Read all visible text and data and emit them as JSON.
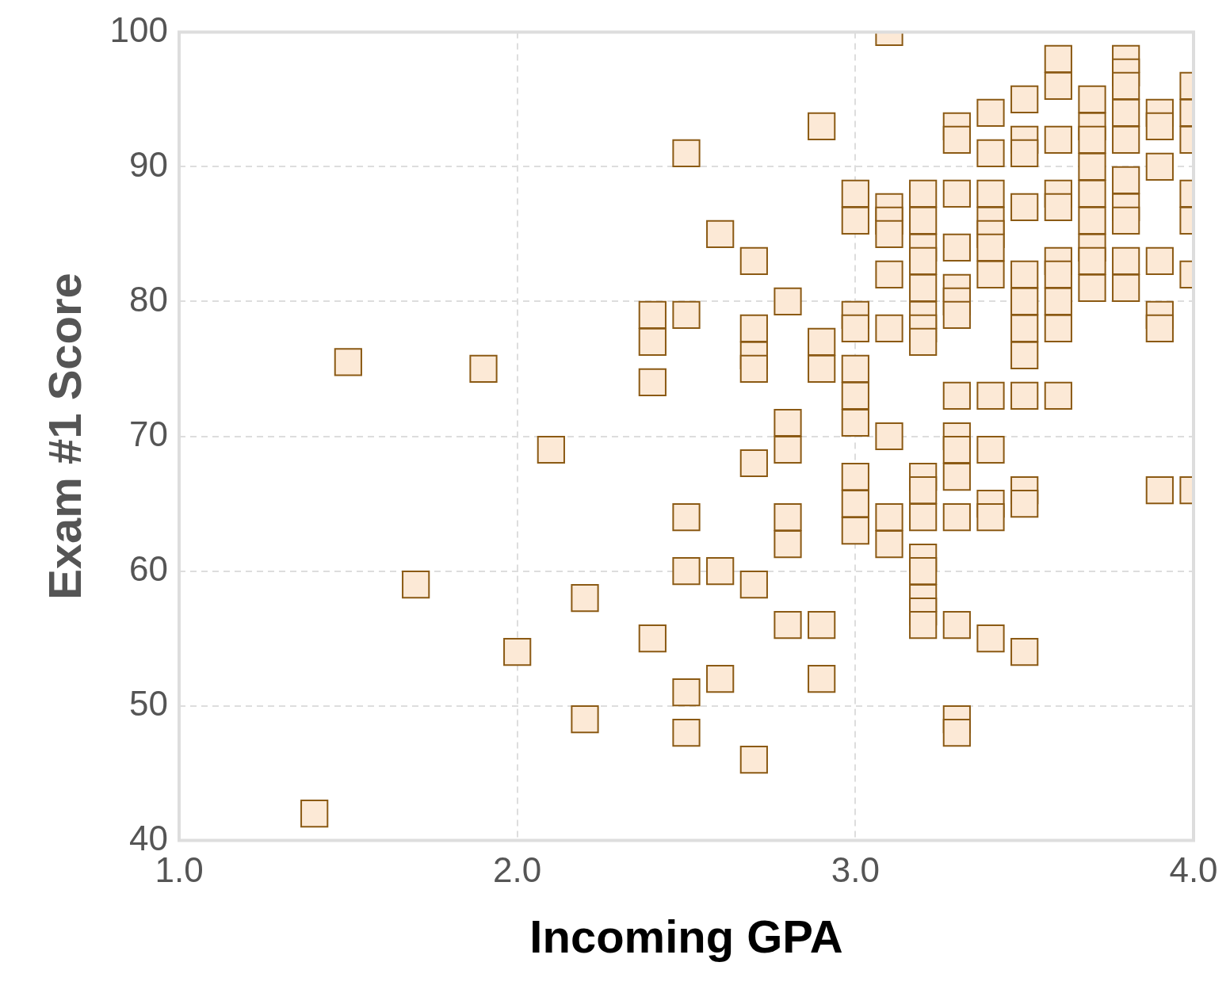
{
  "chart_data": {
    "type": "scatter",
    "xlabel": "Incoming GPA",
    "ylabel": "Exam #1 Score",
    "marker": "square",
    "grid": true,
    "xlim": [
      1.0,
      4.0
    ],
    "xticks": [
      {
        "value": 1.0,
        "label": "1.0"
      },
      {
        "value": 2.0,
        "label": "2.0"
      },
      {
        "value": 3.0,
        "label": "3.0"
      },
      {
        "value": 4.0,
        "label": "4.0"
      }
    ],
    "ylim": [
      40,
      100
    ],
    "yticks": [
      40,
      50,
      60,
      70,
      80,
      90,
      100
    ],
    "series": [
      {
        "color": "#fce9d6",
        "x": [
          1.4,
          1.5,
          1.7,
          1.9,
          2.0,
          2.1,
          2.2,
          2.2,
          2.4,
          2.4,
          2.4,
          2.4,
          2.5,
          2.5,
          2.5,
          2.5,
          2.5,
          2.5,
          2.6,
          2.6,
          2.6,
          2.7,
          2.7,
          2.7,
          2.7,
          2.7,
          2.7,
          2.7,
          2.8,
          2.8,
          2.8,
          2.8,
          2.8,
          2.8,
          2.9,
          2.9,
          2.9,
          2.9,
          2.9,
          3.0,
          3.0,
          3.0,
          3.0,
          3.0,
          3.0,
          3.0,
          3.0,
          3.0,
          3.0,
          3.1,
          3.1,
          3.1,
          3.1,
          3.1,
          3.1,
          3.1,
          3.1,
          3.1,
          3.2,
          3.2,
          3.2,
          3.2,
          3.2,
          3.2,
          3.2,
          3.2,
          3.2,
          3.2,
          3.2,
          3.2,
          3.2,
          3.2,
          3.2,
          3.2,
          3.3,
          3.3,
          3.3,
          3.3,
          3.3,
          3.3,
          3.3,
          3.3,
          3.3,
          3.3,
          3.3,
          3.3,
          3.3,
          3.3,
          3.3,
          3.4,
          3.4,
          3.4,
          3.4,
          3.4,
          3.4,
          3.4,
          3.4,
          3.4,
          3.4,
          3.4,
          3.4,
          3.5,
          3.5,
          3.5,
          3.5,
          3.5,
          3.5,
          3.5,
          3.5,
          3.5,
          3.5,
          3.5,
          3.5,
          3.6,
          3.6,
          3.6,
          3.6,
          3.6,
          3.6,
          3.6,
          3.6,
          3.6,
          3.6,
          3.7,
          3.7,
          3.7,
          3.7,
          3.7,
          3.7,
          3.7,
          3.7,
          3.7,
          3.8,
          3.8,
          3.8,
          3.8,
          3.8,
          3.8,
          3.8,
          3.8,
          3.8,
          3.8,
          3.9,
          3.9,
          3.9,
          3.9,
          3.9,
          3.9,
          3.9,
          4.0,
          4.0,
          4.0,
          4.0,
          4.0,
          4.0,
          4.0
        ],
        "values": [
          42,
          75.5,
          59,
          75,
          54,
          69,
          58,
          49,
          79,
          77,
          74,
          55,
          91,
          79,
          64,
          60,
          51,
          48,
          85,
          60,
          52,
          83,
          78,
          76,
          75,
          68,
          59,
          46,
          80,
          71,
          69,
          64,
          62,
          56,
          93,
          77,
          75,
          56,
          52,
          88,
          86,
          79,
          78,
          75,
          73,
          71,
          67,
          65,
          63,
          100,
          87,
          86,
          85,
          82,
          78,
          70,
          64,
          62,
          88,
          86,
          84,
          83,
          81,
          79,
          78,
          77,
          67,
          66,
          64,
          61,
          60,
          58,
          57,
          56,
          93,
          92,
          88,
          84,
          81,
          80,
          79,
          73,
          70,
          69,
          67,
          64,
          56,
          49,
          48,
          94,
          91,
          88,
          86,
          85,
          84,
          82,
          73,
          69,
          65,
          64,
          55,
          95,
          92,
          91,
          87,
          82,
          80,
          78,
          76,
          73,
          66,
          65,
          54,
          98,
          96,
          92,
          88,
          87,
          83,
          82,
          80,
          78,
          73,
          95,
          93,
          92,
          90,
          88,
          86,
          84,
          83,
          81,
          98,
          97,
          96,
          94,
          92,
          89,
          87,
          86,
          83,
          81,
          94,
          93,
          90,
          83,
          79,
          78,
          66,
          96,
          94,
          92,
          88,
          86,
          82,
          66
        ]
      }
    ]
  }
}
